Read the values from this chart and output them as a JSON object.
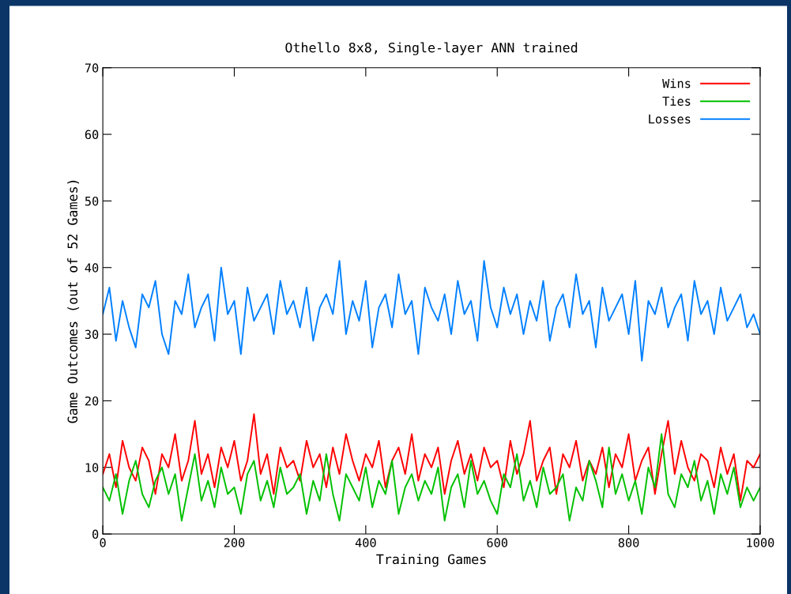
{
  "chart_data": {
    "type": "line",
    "title": "Othello 8x8, Single-layer ANN trained",
    "xlabel": "Training Games",
    "ylabel": "Game Outcomes (out of 52 Games)",
    "x": [
      0,
      10,
      20,
      30,
      40,
      50,
      60,
      70,
      80,
      90,
      100,
      110,
      120,
      130,
      140,
      150,
      160,
      170,
      180,
      190,
      200,
      210,
      220,
      230,
      240,
      250,
      260,
      270,
      280,
      290,
      300,
      310,
      320,
      330,
      340,
      350,
      360,
      370,
      380,
      390,
      400,
      410,
      420,
      430,
      440,
      450,
      460,
      470,
      480,
      490,
      500,
      510,
      520,
      530,
      540,
      550,
      560,
      570,
      580,
      590,
      600,
      610,
      620,
      630,
      640,
      650,
      660,
      670,
      680,
      690,
      700,
      710,
      720,
      730,
      740,
      750,
      760,
      770,
      780,
      790,
      800,
      810,
      820,
      830,
      840,
      850,
      860,
      870,
      880,
      890,
      900,
      910,
      920,
      930,
      940,
      950,
      960,
      970,
      980,
      990,
      1000
    ],
    "series": [
      {
        "name": "Wins",
        "color": "#ff0000",
        "values": [
          9,
          12,
          7,
          14,
          10,
          8,
          13,
          11,
          6,
          12,
          10,
          15,
          8,
          11,
          17,
          9,
          12,
          7,
          13,
          10,
          14,
          8,
          11,
          18,
          9,
          12,
          6,
          13,
          10,
          11,
          8,
          14,
          10,
          12,
          7,
          13,
          9,
          15,
          11,
          8,
          12,
          10,
          14,
          7,
          11,
          13,
          9,
          15,
          8,
          12,
          10,
          13,
          6,
          11,
          14,
          9,
          12,
          8,
          13,
          10,
          11,
          7,
          14,
          9,
          12,
          17,
          8,
          11,
          13,
          6,
          12,
          10,
          14,
          8,
          11,
          9,
          13,
          7,
          12,
          10,
          15,
          8,
          11,
          13,
          6,
          12,
          17,
          9,
          14,
          10,
          8,
          12,
          11,
          7,
          13,
          9,
          12,
          5,
          11,
          10,
          12
        ]
      },
      {
        "name": "Ties",
        "color": "#00c000",
        "values": [
          7,
          5,
          9,
          3,
          8,
          11,
          6,
          4,
          8,
          10,
          6,
          9,
          2,
          7,
          12,
          5,
          8,
          4,
          10,
          6,
          7,
          3,
          9,
          11,
          5,
          8,
          4,
          10,
          6,
          7,
          9,
          3,
          8,
          5,
          12,
          6,
          2,
          9,
          7,
          5,
          10,
          4,
          8,
          6,
          11,
          3,
          7,
          9,
          5,
          8,
          6,
          10,
          2,
          7,
          9,
          4,
          11,
          6,
          8,
          5,
          3,
          9,
          7,
          12,
          5,
          8,
          4,
          10,
          6,
          7,
          9,
          2,
          7,
          5,
          11,
          8,
          4,
          13,
          6,
          9,
          5,
          8,
          3,
          10,
          7,
          15,
          6,
          4,
          9,
          7,
          11,
          5,
          8,
          3,
          9,
          6,
          10,
          4,
          7,
          5,
          7
        ]
      },
      {
        "name": "Losses",
        "color": "#0080ff",
        "values": [
          33,
          37,
          29,
          35,
          31,
          28,
          36,
          34,
          38,
          30,
          27,
          35,
          33,
          39,
          31,
          34,
          36,
          29,
          40,
          33,
          35,
          27,
          37,
          32,
          34,
          36,
          30,
          38,
          33,
          35,
          31,
          37,
          29,
          34,
          36,
          33,
          41,
          30,
          35,
          32,
          38,
          28,
          34,
          36,
          31,
          39,
          33,
          35,
          27,
          37,
          34,
          32,
          36,
          30,
          38,
          33,
          35,
          29,
          41,
          34,
          31,
          37,
          33,
          36,
          30,
          35,
          32,
          38,
          29,
          34,
          36,
          31,
          39,
          33,
          35,
          28,
          37,
          32,
          34,
          36,
          30,
          38,
          26,
          35,
          33,
          37,
          31,
          34,
          36,
          29,
          38,
          33,
          35,
          30,
          37,
          32,
          34,
          36,
          31,
          33,
          30
        ]
      }
    ],
    "xlim": [
      0,
      1000
    ],
    "xticks": [
      0,
      200,
      400,
      600,
      800,
      1000
    ],
    "ylim": [
      0,
      70
    ],
    "yticks": [
      0,
      10,
      20,
      30,
      40,
      50,
      60,
      70
    ],
    "grid": false,
    "legend": "top right",
    "marker": "none",
    "line_style": "solid"
  }
}
